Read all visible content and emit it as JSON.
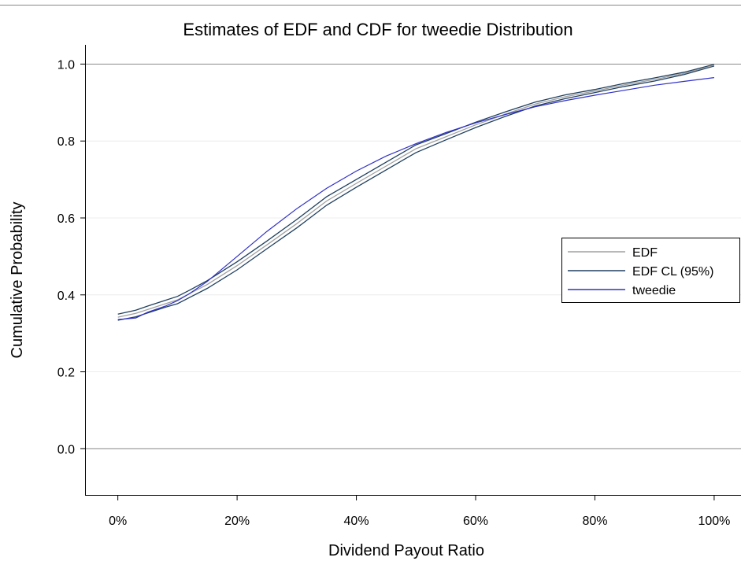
{
  "chart_data": {
    "type": "line",
    "title": "Estimates of EDF and CDF for tweedie Distribution",
    "xlabel": "Dividend Payout Ratio",
    "ylabel": "Cumulative Probability",
    "xlim": [
      -0.055,
      1.045
    ],
    "ylim": [
      -0.12,
      1.05
    ],
    "x_ticks": [
      0,
      0.2,
      0.4,
      0.6,
      0.8,
      1.0
    ],
    "x_tick_labels": [
      "0%",
      "20%",
      "40%",
      "60%",
      "80%",
      "100%"
    ],
    "y_ticks": [
      0.0,
      0.2,
      0.4,
      0.6,
      0.8,
      1.0
    ],
    "y_tick_labels": [
      "0.0",
      "0.2",
      "0.4",
      "0.6",
      "0.8",
      "1.0"
    ],
    "reference_lines_y": [
      0.0,
      1.0
    ],
    "grid_y": [
      0.2,
      0.4,
      0.6,
      0.8
    ],
    "legend_position": "right",
    "x": [
      0.0,
      0.03,
      0.05,
      0.08,
      0.1,
      0.12,
      0.15,
      0.2,
      0.25,
      0.3,
      0.35,
      0.4,
      0.45,
      0.5,
      0.55,
      0.6,
      0.65,
      0.7,
      0.75,
      0.8,
      0.85,
      0.9,
      0.95,
      1.0
    ],
    "series": [
      {
        "name": "EDF",
        "color": "#a0a0a0",
        "values": [
          0.342,
          0.352,
          0.362,
          0.377,
          0.387,
          0.403,
          0.427,
          0.476,
          0.53,
          0.585,
          0.644,
          0.69,
          0.735,
          0.78,
          0.811,
          0.842,
          0.87,
          0.896,
          0.915,
          0.93,
          0.946,
          0.96,
          0.976,
          0.997
        ]
      },
      {
        "name": "EDF CL (95%)",
        "color": "#1f3f60",
        "bounds": {
          "lower": [
            0.334,
            0.343,
            0.353,
            0.368,
            0.377,
            0.393,
            0.417,
            0.465,
            0.52,
            0.574,
            0.633,
            0.68,
            0.725,
            0.77,
            0.803,
            0.835,
            0.864,
            0.891,
            0.91,
            0.926,
            0.942,
            0.956,
            0.973,
            0.995
          ],
          "upper": [
            0.35,
            0.36,
            0.371,
            0.386,
            0.396,
            0.412,
            0.437,
            0.486,
            0.54,
            0.596,
            0.655,
            0.7,
            0.745,
            0.79,
            0.819,
            0.849,
            0.876,
            0.901,
            0.92,
            0.934,
            0.95,
            0.964,
            0.979,
            0.999
          ]
        }
      },
      {
        "name": "tweedie",
        "color": "#3030c8",
        "values": [
          0.336,
          0.34,
          0.355,
          0.371,
          0.385,
          0.403,
          0.435,
          0.5,
          0.565,
          0.624,
          0.677,
          0.722,
          0.761,
          0.793,
          0.822,
          0.847,
          0.869,
          0.889,
          0.905,
          0.919,
          0.932,
          0.945,
          0.955,
          0.965
        ]
      }
    ]
  }
}
